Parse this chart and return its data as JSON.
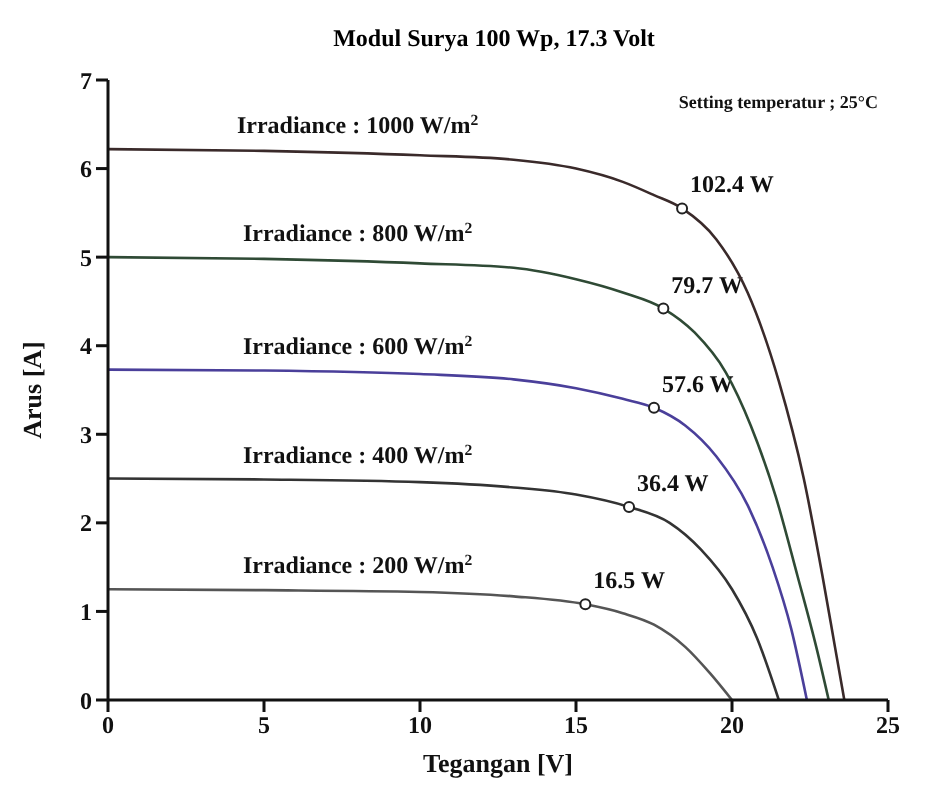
{
  "chart_data": {
    "type": "line",
    "title": "Modul Surya 100 Wp, 17.3 Volt",
    "xlabel": "Tegangan [V]",
    "ylabel": "Arus [A]",
    "annotations": [
      "Setting temperatur ; 25°C",
      {
        "text": "102.4 W",
        "x": 18.4,
        "y": 5.55
      },
      {
        "text": "79.7 W",
        "x": 17.8,
        "y": 4.42
      },
      {
        "text": "57.6 W",
        "x": 17.5,
        "y": 3.3
      },
      {
        "text": "36.4 W",
        "x": 16.7,
        "y": 2.18
      },
      {
        "text": "16.5 W",
        "x": 15.3,
        "y": 1.08
      }
    ],
    "xlim": [
      0,
      25
    ],
    "xticks": [
      0,
      5,
      10,
      15,
      20,
      25
    ],
    "ylim": [
      0,
      7
    ],
    "yticks": [
      0,
      1,
      2,
      3,
      4,
      5,
      6,
      7
    ],
    "grid": false,
    "legend": false,
    "marker": "none",
    "line_style": "solid",
    "series": [
      {
        "name": "Irradiance : 1000 W/m$^{2}$",
        "color": "#3a2a2a",
        "x": [
          0,
          5,
          10,
          13,
          15,
          16.5,
          17.5,
          18.4,
          19.5,
          20.5,
          21.5,
          22.3,
          22.9,
          23.3,
          23.6
        ],
        "values": [
          6.22,
          6.2,
          6.15,
          6.1,
          6.0,
          5.85,
          5.7,
          5.55,
          5.2,
          4.6,
          3.6,
          2.5,
          1.4,
          0.6,
          0
        ]
      },
      {
        "name": "Irradiance : 800 W/m$^{2}$",
        "color": "#2f4a35",
        "x": [
          0,
          5,
          10,
          13,
          15,
          16.5,
          17.8,
          18.8,
          19.8,
          20.6,
          21.4,
          22.1,
          22.7,
          23.1
        ],
        "values": [
          5.0,
          4.98,
          4.93,
          4.88,
          4.75,
          4.6,
          4.42,
          4.15,
          3.7,
          3.1,
          2.3,
          1.4,
          0.6,
          0
        ]
      },
      {
        "name": "Irradiance : 600 W/m$^{2}$",
        "color": "#4a3f9a",
        "x": [
          0,
          5,
          10,
          13,
          15,
          16.5,
          17.5,
          18.5,
          19.5,
          20.5,
          21.3,
          21.9,
          22.4
        ],
        "values": [
          3.73,
          3.72,
          3.68,
          3.62,
          3.52,
          3.4,
          3.3,
          3.1,
          2.75,
          2.2,
          1.5,
          0.8,
          0
        ]
      },
      {
        "name": "Irradiance : 400 W/m$^{2}$",
        "color": "#333333",
        "x": [
          0,
          5,
          10,
          13,
          15,
          16.7,
          18,
          19,
          20,
          20.8,
          21.5
        ],
        "values": [
          2.5,
          2.49,
          2.46,
          2.4,
          2.32,
          2.18,
          2.0,
          1.7,
          1.25,
          0.7,
          0
        ]
      },
      {
        "name": "Irradiance : 200 W/m$^{2}$",
        "color": "#555555",
        "x": [
          0,
          5,
          10,
          13,
          15.3,
          16.5,
          17.5,
          18.5,
          19.3,
          20
        ],
        "values": [
          1.25,
          1.24,
          1.22,
          1.17,
          1.08,
          0.98,
          0.85,
          0.6,
          0.3,
          0
        ]
      },
      {
        "type": "scatter",
        "color": "#222222",
        "marker": "circle",
        "x": [
          18.4,
          17.8,
          17.5,
          16.7,
          15.3
        ],
        "values": [
          5.55,
          4.42,
          3.3,
          2.18,
          1.08
        ]
      }
    ]
  }
}
